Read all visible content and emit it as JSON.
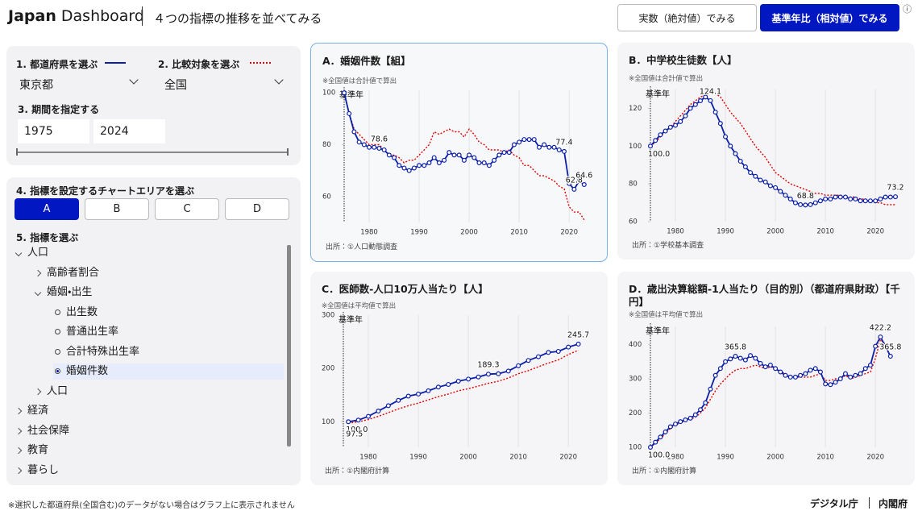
{
  "header": {
    "brand": "Japan",
    "brand_rest": "Dashboard",
    "subtitle": "４つの指標の推移を並べてみる",
    "buttons": [
      "実数（絶対値）でみる",
      "基準年比（相対値）でみる"
    ],
    "info": "ⓘ"
  },
  "sidebar": {
    "step1_label": "1. 都道府県を選ぶ",
    "step1_value": "東京都",
    "step1_color": "#0b1fa8",
    "step2_label": "2. 比較対象を選ぶ",
    "step2_value": "全国",
    "step2_color": "#e00000",
    "step3_label": "3. 期間を指定する",
    "period_start": "1975",
    "period_end": "2024",
    "step4_label": "4. 指標を設定するチャートエリアを選ぶ",
    "areas": [
      "A",
      "B",
      "C",
      "D"
    ],
    "selected_area": "A",
    "step5_label": "5. 指標を選ぶ",
    "tree": [
      {
        "label": "人口",
        "children": [
          {
            "label": "高齢者割合"
          },
          {
            "label": "婚姻・出生",
            "children": [
              {
                "label": "出生数"
              },
              {
                "label": "普通出生率"
              },
              {
                "label": "合計特殊出生率"
              },
              {
                "label": "婚姻件数",
                "selected": true
              }
            ]
          },
          {
            "label": "人口"
          }
        ]
      },
      {
        "label": "経済"
      },
      {
        "label": "社会保障"
      },
      {
        "label": "教育"
      },
      {
        "label": "暮らし"
      }
    ]
  },
  "footer": {
    "note": "※選択した都道府県(全国含む)のデータがない場合はグラフ上に表示されません",
    "orgs": [
      "デジタル庁",
      "内閣府"
    ]
  },
  "chart_data": [
    {
      "type": "line",
      "title": "A．婚姻件数【組】",
      "note": "※全国値は合計値で算出",
      "source": "出所：①人口動態調査",
      "base_label": "基準年",
      "base_year": 1975,
      "grid": "x",
      "x": [
        1975,
        1976,
        1977,
        1978,
        1979,
        1980,
        1981,
        1982,
        1983,
        1984,
        1985,
        1986,
        1987,
        1988,
        1989,
        1990,
        1991,
        1992,
        1993,
        1994,
        1995,
        1996,
        1997,
        1998,
        1999,
        2000,
        2001,
        2002,
        2003,
        2004,
        2005,
        2006,
        2007,
        2008,
        2009,
        2010,
        2011,
        2012,
        2013,
        2014,
        2015,
        2016,
        2017,
        2018,
        2019,
        2020,
        2021,
        2022,
        2023
      ],
      "xlim": [
        1975,
        2024
      ],
      "xticks": [
        1980,
        1990,
        2000,
        2010,
        2020
      ],
      "ylim": [
        50,
        101
      ],
      "yticks": [
        60,
        80,
        100
      ],
      "series": [
        {
          "color": "#0b1fa8",
          "line_style": "solid",
          "markers": true,
          "values": [
            100,
            92,
            85,
            81,
            80,
            79,
            79,
            78.6,
            78,
            76,
            75,
            72,
            71,
            70,
            71,
            72,
            72,
            73,
            75,
            73,
            74,
            77,
            76,
            76,
            74,
            76,
            75,
            73,
            73,
            72,
            74,
            76,
            77,
            77,
            80,
            81,
            82,
            82,
            82,
            79,
            80,
            79,
            79,
            78,
            77.4,
            65,
            62.8,
            66,
            64.6
          ],
          "value_labels": [
            null,
            null,
            null,
            null,
            null,
            null,
            null,
            "78.6",
            null,
            null,
            null,
            null,
            null,
            null,
            null,
            null,
            null,
            null,
            null,
            null,
            null,
            null,
            null,
            null,
            null,
            null,
            null,
            null,
            null,
            null,
            null,
            null,
            null,
            null,
            null,
            null,
            null,
            null,
            null,
            null,
            null,
            null,
            null,
            null,
            "77.4",
            null,
            "62.8",
            null,
            "64.6"
          ]
        },
        {
          "color": "#e00000",
          "line_style": "dotted",
          "markers": false,
          "values": [
            100,
            92,
            86,
            84,
            82,
            80,
            80,
            80,
            78,
            76,
            76,
            75,
            73,
            74,
            74,
            76,
            78,
            80,
            85,
            84,
            85,
            86,
            85,
            85,
            83,
            86,
            84,
            81,
            80,
            78,
            78,
            78,
            77,
            78,
            76,
            75,
            72,
            72,
            70,
            68,
            68,
            67,
            66,
            64,
            63,
            56,
            54,
            54,
            51
          ]
        }
      ]
    },
    {
      "type": "line",
      "title": "B．中学校生徒数【人】",
      "note": "※全国値は合計値で算出",
      "source": "出所：①学校基本調査",
      "base_label": "基準年",
      "base_year": 1975,
      "grid": "x",
      "x": [
        1975,
        1976,
        1977,
        1978,
        1979,
        1980,
        1981,
        1982,
        1983,
        1984,
        1985,
        1986,
        1987,
        1988,
        1989,
        1990,
        1991,
        1992,
        1993,
        1994,
        1995,
        1996,
        1997,
        1998,
        1999,
        2000,
        2001,
        2002,
        2003,
        2004,
        2005,
        2006,
        2007,
        2008,
        2009,
        2010,
        2011,
        2012,
        2013,
        2014,
        2015,
        2016,
        2017,
        2018,
        2019,
        2020,
        2021,
        2022,
        2023,
        2024
      ],
      "xlim": [
        1975,
        2024
      ],
      "xticks": [
        1980,
        1990,
        2000,
        2010,
        2020
      ],
      "ylim": [
        60,
        130
      ],
      "yticks": [
        60,
        80,
        100,
        120
      ],
      "series": [
        {
          "color": "#0b1fa8",
          "line_style": "solid",
          "markers": true,
          "values": [
            100,
            103,
            106,
            108,
            110,
            111,
            113,
            116,
            120,
            122,
            124,
            126,
            124.1,
            118,
            112,
            105,
            100,
            96,
            92,
            89,
            86,
            84,
            82,
            81,
            79,
            78,
            76,
            74,
            72,
            70,
            69,
            68.8,
            69,
            70,
            71,
            72,
            72,
            73,
            73,
            73,
            72,
            72,
            71,
            71,
            71,
            71,
            72,
            73,
            73,
            73.2
          ],
          "value_labels": [
            "100.0",
            null,
            null,
            null,
            null,
            null,
            null,
            null,
            null,
            null,
            null,
            null,
            "124.1",
            null,
            null,
            null,
            null,
            null,
            null,
            null,
            null,
            null,
            null,
            null,
            null,
            null,
            null,
            null,
            null,
            null,
            null,
            "68.8",
            null,
            null,
            null,
            null,
            null,
            null,
            null,
            null,
            null,
            null,
            null,
            null,
            null,
            null,
            null,
            null,
            null,
            "73.2"
          ]
        },
        {
          "color": "#e00000",
          "line_style": "dotted",
          "markers": false,
          "values": [
            100,
            102,
            105,
            108,
            110,
            113,
            116,
            119,
            122,
            124,
            126,
            127,
            129,
            128,
            126,
            122,
            118,
            115,
            112,
            108,
            104,
            100,
            97,
            94,
            90,
            86,
            84,
            82,
            80,
            79,
            78,
            77,
            76,
            75,
            75,
            74,
            74,
            74,
            74,
            73,
            73,
            73,
            72,
            72,
            71,
            70,
            70,
            69,
            69,
            69
          ]
        }
      ]
    },
    {
      "type": "line",
      "title": "C．医師数-人口10万人当たり【人】",
      "note": "※全国値は平均値で算出",
      "source": "出所：①内閣府計算",
      "base_label": "基準年",
      "base_year": 1975,
      "grid": "x",
      "x": [
        1976,
        1978,
        1980,
        1982,
        1984,
        1986,
        1988,
        1990,
        1992,
        1994,
        1996,
        1998,
        2000,
        2002,
        2004,
        2006,
        2008,
        2010,
        2012,
        2014,
        2016,
        2018,
        2020,
        2022
      ],
      "xlim": [
        1975,
        2024
      ],
      "xticks": [
        1980,
        1990,
        2000,
        2010,
        2020
      ],
      "ylim": [
        52,
        300
      ],
      "yticks": [
        100,
        200,
        300
      ],
      "series": [
        {
          "color": "#0b1fa8",
          "line_style": "solid",
          "markers": true,
          "values": [
            100,
            103,
            110,
            120,
            130,
            140,
            148,
            152,
            158,
            165,
            170,
            176,
            180,
            184,
            189.3,
            190,
            195,
            205,
            215,
            222,
            230,
            232,
            240,
            245.7
          ],
          "value_labels": [
            "100.0",
            null,
            null,
            null,
            null,
            null,
            null,
            null,
            null,
            null,
            null,
            null,
            null,
            null,
            "189.3",
            null,
            null,
            null,
            null,
            null,
            null,
            null,
            null,
            "245.7"
          ]
        },
        {
          "color": "#e00000",
          "line_style": "dotted",
          "markers": false,
          "values": [
            97.5,
            100,
            104,
            110,
            117,
            124,
            130,
            135,
            141,
            147,
            152,
            158,
            162,
            167,
            172,
            176,
            182,
            190,
            196,
            203,
            210,
            216,
            226,
            234
          ],
          "value_labels": [
            "97.5",
            null,
            null,
            null,
            null,
            null,
            null,
            null,
            null,
            null,
            null,
            null,
            null,
            null,
            null,
            null,
            null,
            null,
            null,
            null,
            null,
            null,
            null,
            null
          ]
        }
      ]
    },
    {
      "type": "line",
      "title": "D．歳出決算総額-1人当たり（目的別）（都道府県財政）【千円】",
      "note": "※全国値は平均値で算出",
      "source": "出所：①内閣府計算",
      "base_label": "基準年",
      "base_year": 1975,
      "grid": "x",
      "x": [
        1975,
        1976,
        1977,
        1978,
        1979,
        1980,
        1981,
        1982,
        1983,
        1984,
        1985,
        1986,
        1987,
        1988,
        1989,
        1990,
        1991,
        1992,
        1993,
        1994,
        1995,
        1996,
        1997,
        1998,
        1999,
        2000,
        2001,
        2002,
        2003,
        2004,
        2005,
        2006,
        2007,
        2008,
        2009,
        2010,
        2011,
        2012,
        2013,
        2014,
        2015,
        2016,
        2017,
        2018,
        2019,
        2020,
        2021,
        2022,
        2023
      ],
      "xlim": [
        1975,
        2024
      ],
      "xticks": [
        1980,
        1990,
        2000,
        2010,
        2020
      ],
      "ylim": [
        100,
        453
      ],
      "yticks": [
        100,
        200,
        300,
        400
      ],
      "series": [
        {
          "color": "#0b1fa8",
          "line_style": "solid",
          "markers": true,
          "values": [
            100,
            115,
            130,
            145,
            160,
            168,
            175,
            180,
            185,
            195,
            210,
            230,
            270,
            310,
            330,
            350,
            358,
            365.8,
            360,
            355,
            368,
            360,
            345,
            335,
            340,
            330,
            320,
            310,
            305,
            305,
            310,
            315,
            325,
            330,
            320,
            285,
            283,
            290,
            300,
            315,
            305,
            310,
            315,
            330,
            340,
            395,
            422.2,
            395,
            365.8
          ],
          "value_labels": [
            "100.0",
            null,
            null,
            null,
            null,
            null,
            null,
            null,
            null,
            null,
            null,
            null,
            null,
            null,
            null,
            null,
            null,
            "365.8",
            null,
            null,
            null,
            null,
            null,
            null,
            null,
            null,
            null,
            null,
            null,
            null,
            null,
            null,
            null,
            null,
            null,
            null,
            null,
            null,
            null,
            null,
            null,
            null,
            null,
            null,
            null,
            null,
            "422.2",
            null,
            "365.8"
          ]
        },
        {
          "color": "#e00000",
          "line_style": "dotted",
          "markers": false,
          "values": [
            100,
            112,
            125,
            140,
            155,
            165,
            172,
            178,
            182,
            188,
            200,
            215,
            240,
            265,
            285,
            300,
            315,
            325,
            330,
            330,
            335,
            340,
            335,
            330,
            335,
            330,
            320,
            315,
            305,
            305,
            305,
            305,
            305,
            310,
            315,
            295,
            295,
            300,
            300,
            310,
            300,
            305,
            310,
            315,
            320,
            360,
            415,
            400,
            385
          ]
        }
      ]
    }
  ]
}
